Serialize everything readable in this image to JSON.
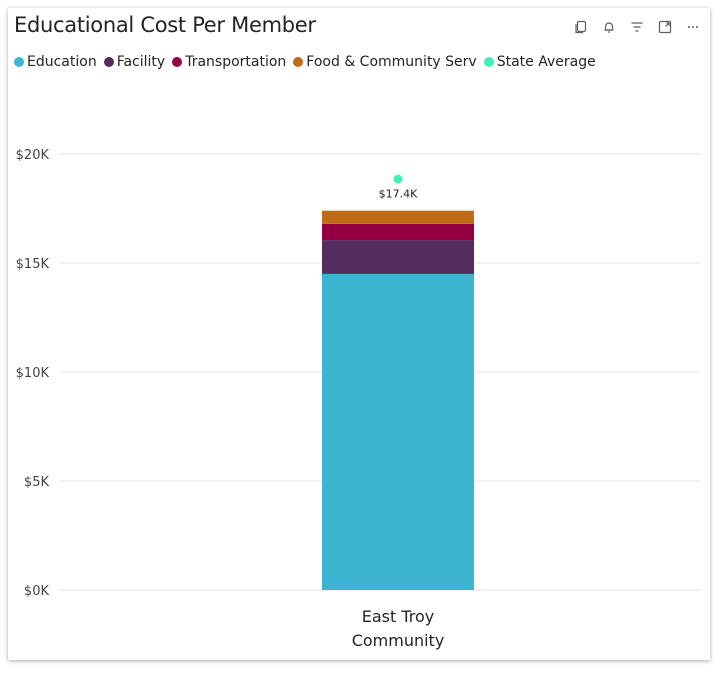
{
  "header": {
    "title": "Educational Cost Per Member",
    "tools": [
      "copy-icon",
      "bell-icon",
      "filter-icon",
      "expand-icon",
      "more-icon"
    ]
  },
  "legend": [
    {
      "label": "Education",
      "color": "#3CB4D2"
    },
    {
      "label": "Facility",
      "color": "#522D5E"
    },
    {
      "label": "Transportation",
      "color": "#960042"
    },
    {
      "label": "Food & Community Serv",
      "color": "#C06C17"
    },
    {
      "label": "State Average",
      "color": "#41F0B4"
    }
  ],
  "chart_data": {
    "type": "bar",
    "stacked": true,
    "categories": [
      "East Troy Community"
    ],
    "category_lines": [
      [
        "East Troy",
        "Community"
      ]
    ],
    "series": [
      {
        "name": "Education",
        "values": [
          14500
        ],
        "color": "#3CB4D2"
      },
      {
        "name": "Facility",
        "values": [
          1550
        ],
        "color": "#522D5E"
      },
      {
        "name": "Transportation",
        "values": [
          750
        ],
        "color": "#960042"
      },
      {
        "name": "Food & Community Serv",
        "values": [
          600
        ],
        "color": "#C06C17"
      }
    ],
    "markers": [
      {
        "name": "State Average",
        "values": [
          18850
        ],
        "color": "#41F0B4"
      }
    ],
    "total_labels": [
      "$17.4K"
    ],
    "ylim": [
      0,
      20000
    ],
    "yticks": [
      0,
      5000,
      10000,
      15000,
      20000
    ],
    "ytick_labels": [
      "$0K",
      "$5K",
      "$10K",
      "$15K",
      "$20K"
    ],
    "grid": true,
    "legend_position": "top-left"
  }
}
